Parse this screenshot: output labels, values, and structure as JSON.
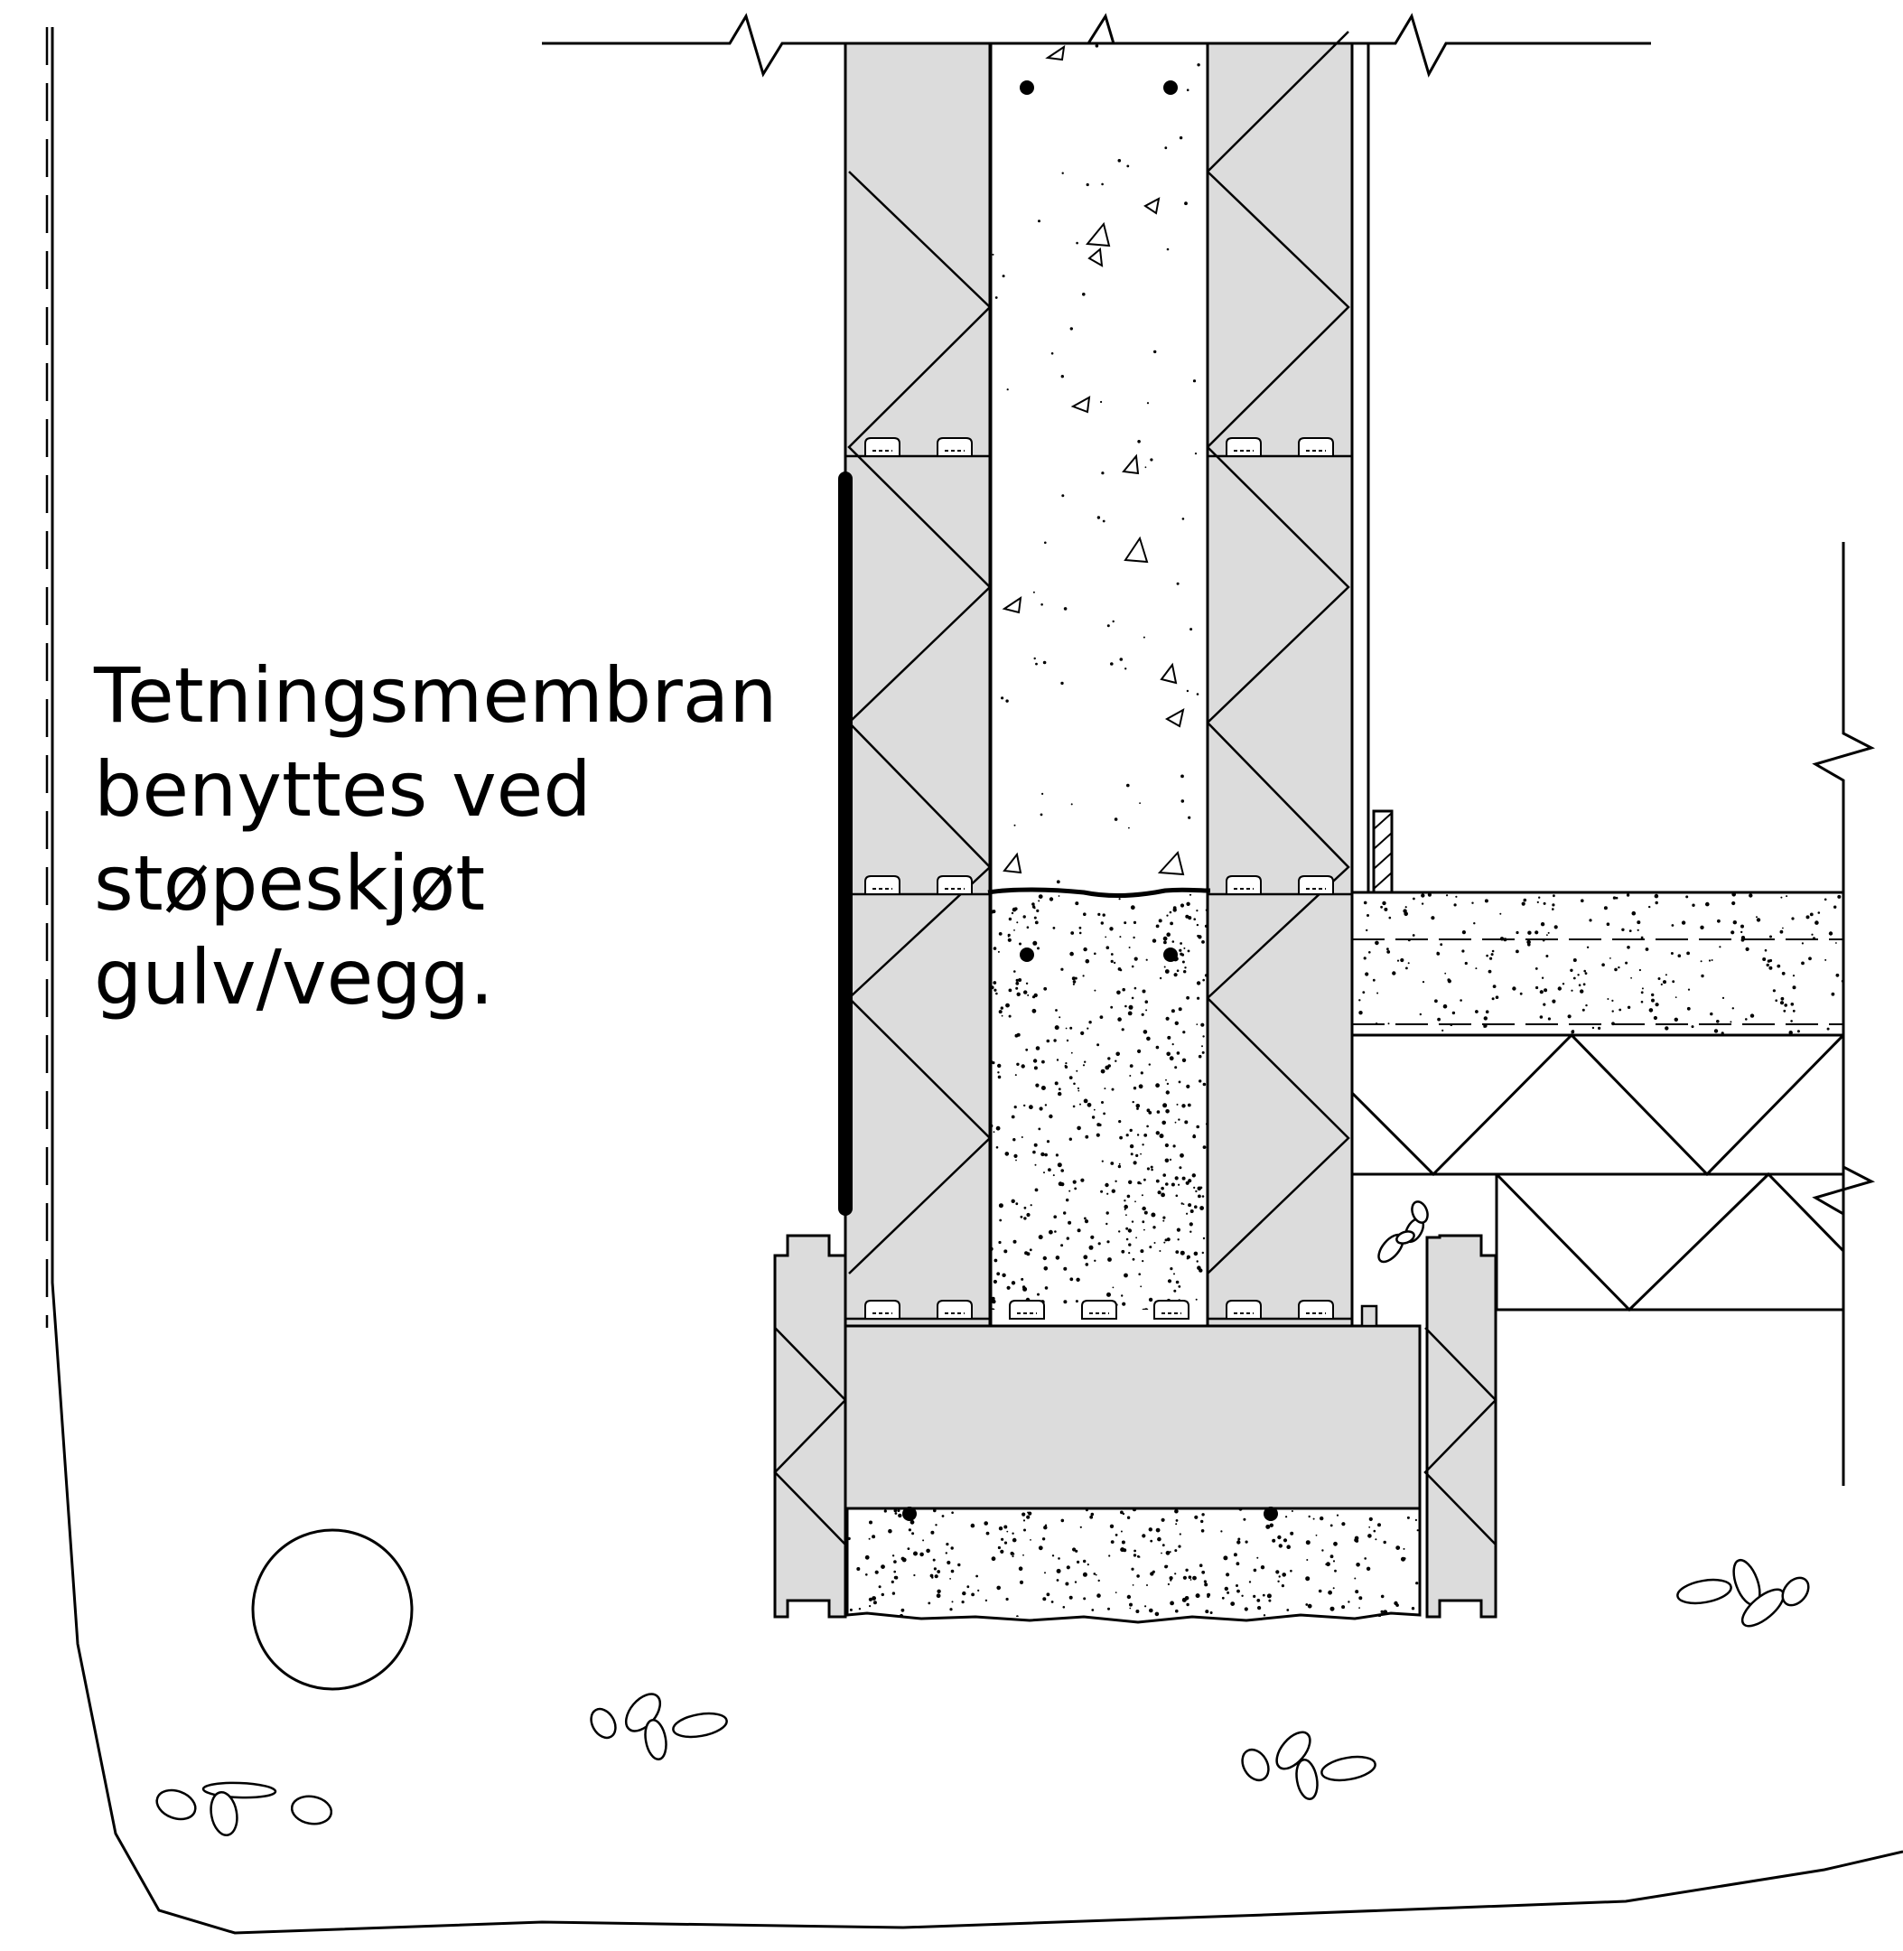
{
  "annotation": {
    "lines": [
      "Tetningsmembran",
      "benyttes ved",
      "støpeskjøt",
      "gulv/vegg."
    ]
  },
  "colors": {
    "line": "#000000",
    "insulation_fill": "#dcdcdc",
    "background": "#ffffff"
  }
}
